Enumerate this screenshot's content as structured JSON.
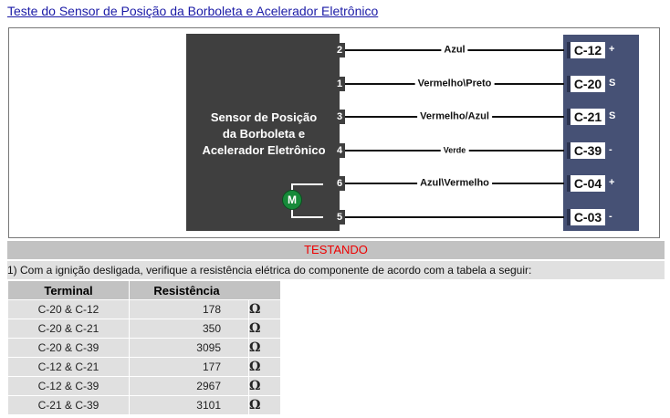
{
  "title": "Teste do Sensor de Posição da Borboleta e Acelerador Eletrônico",
  "diagram": {
    "component": [
      "Sensor de Posição",
      "da Borboleta e",
      "Acelerador Eletrônico"
    ],
    "motor_label": "M",
    "wires": [
      {
        "pin": "2",
        "color": "Azul",
        "connector": "C-12",
        "polarity": "+"
      },
      {
        "pin": "1",
        "color": "Vermelho\\Preto",
        "connector": "C-20",
        "polarity": "S"
      },
      {
        "pin": "3",
        "color": "Vermelho/Azul",
        "connector": "C-21",
        "polarity": "S"
      },
      {
        "pin": "4",
        "color": "Verde",
        "connector": "C-39",
        "polarity": "-"
      },
      {
        "pin": "6",
        "color": "Azul\\Vermelho",
        "connector": "C-04",
        "polarity": "+"
      },
      {
        "pin": "5",
        "color": "",
        "connector": "C-03",
        "polarity": "-"
      }
    ]
  },
  "testing": {
    "header": "TESTANDO",
    "instruction": "1) Com a ignição desligada, verifique a resistência elétrica do componente de acordo com a tabela a seguir:"
  },
  "table": {
    "headers": [
      "Terminal",
      "Resistência"
    ],
    "unit": "Ω",
    "rows": [
      {
        "terminal": "C-20 & C-12",
        "value": "178"
      },
      {
        "terminal": "C-20 & C-21",
        "value": "350"
      },
      {
        "terminal": "C-20 & C-39",
        "value": "3095"
      },
      {
        "terminal": "C-12 & C-21",
        "value": "177"
      },
      {
        "terminal": "C-12 & C-39",
        "value": "2967"
      },
      {
        "terminal": "C-21 & C-39",
        "value": "3101"
      }
    ]
  }
}
